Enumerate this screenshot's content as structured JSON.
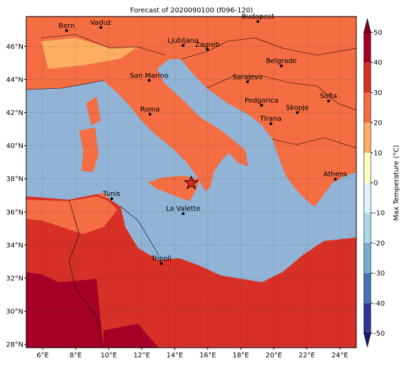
{
  "map": {
    "title": "Forecast of 2020090100 (f096-120)",
    "lonlim": [
      5,
      25
    ],
    "latlim": [
      27.8,
      47.8
    ],
    "lonticks": [
      {
        "value": 6,
        "label": "6°E"
      },
      {
        "value": 8,
        "label": "8°E"
      },
      {
        "value": 10,
        "label": "10°E"
      },
      {
        "value": 12,
        "label": "12°E"
      },
      {
        "value": 14,
        "label": "14°E"
      },
      {
        "value": 16,
        "label": "16°E"
      },
      {
        "value": 18,
        "label": "18°E"
      },
      {
        "value": 20,
        "label": "20°E"
      },
      {
        "value": 22,
        "label": "22°E"
      },
      {
        "value": 24,
        "label": "24°E"
      }
    ],
    "latticks": [
      {
        "value": 28,
        "label": "28°N"
      },
      {
        "value": 30,
        "label": "30°N"
      },
      {
        "value": 32,
        "label": "32°N"
      },
      {
        "value": 34,
        "label": "34°N"
      },
      {
        "value": 36,
        "label": "36°N"
      },
      {
        "value": 38,
        "label": "38°N"
      },
      {
        "value": 40,
        "label": "40°N"
      },
      {
        "value": 42,
        "label": "42°N"
      },
      {
        "value": 44,
        "label": "44°N"
      },
      {
        "value": 46,
        "label": "46°N"
      }
    ],
    "grid": true,
    "cities": [
      {
        "name": "Bern",
        "lon": 7.45,
        "lat": 46.95
      },
      {
        "name": "Vaduz",
        "lon": 9.52,
        "lat": 47.14
      },
      {
        "name": "Budapest",
        "lon": 19.04,
        "lat": 47.5
      },
      {
        "name": "Ljubljana",
        "lon": 14.5,
        "lat": 46.05
      },
      {
        "name": "Zagreb",
        "lon": 15.98,
        "lat": 45.81
      },
      {
        "name": "Belgrade",
        "lon": 20.46,
        "lat": 44.82
      },
      {
        "name": "San Marino",
        "lon": 12.45,
        "lat": 43.94
      },
      {
        "name": "Sarajevo",
        "lon": 18.41,
        "lat": 43.86
      },
      {
        "name": "Sofia",
        "lon": 23.32,
        "lat": 42.7
      },
      {
        "name": "Podgorica",
        "lon": 19.26,
        "lat": 42.44
      },
      {
        "name": "Skopje",
        "lon": 21.43,
        "lat": 42.0
      },
      {
        "name": "Roma",
        "lon": 12.5,
        "lat": 41.9
      },
      {
        "name": "Tirana",
        "lon": 19.82,
        "lat": 41.33
      },
      {
        "name": "Athens",
        "lon": 23.73,
        "lat": 37.98
      },
      {
        "name": "Tunis",
        "lon": 10.18,
        "lat": 36.8
      },
      {
        "name": "La Valette",
        "lon": 14.51,
        "lat": 35.9
      },
      {
        "name": "Tripoli",
        "lon": 13.19,
        "lat": 32.89
      }
    ],
    "star": {
      "lon": 15.0,
      "lat": 37.75
    }
  },
  "colorbar": {
    "label": "Max Temperature (°C)",
    "lim": [
      -50,
      50
    ],
    "ticks": [
      -50,
      -40,
      -30,
      -20,
      -10,
      0,
      10,
      20,
      30,
      40,
      50
    ],
    "colors": [
      "#313695",
      "#4575b4",
      "#74add1",
      "#abd9e9",
      "#e0f3f8",
      "#ffffbf",
      "#fdae61",
      "#f46d43",
      "#d73027",
      "#a50026"
    ],
    "under": "#1a1a6e",
    "over": "#800026"
  }
}
